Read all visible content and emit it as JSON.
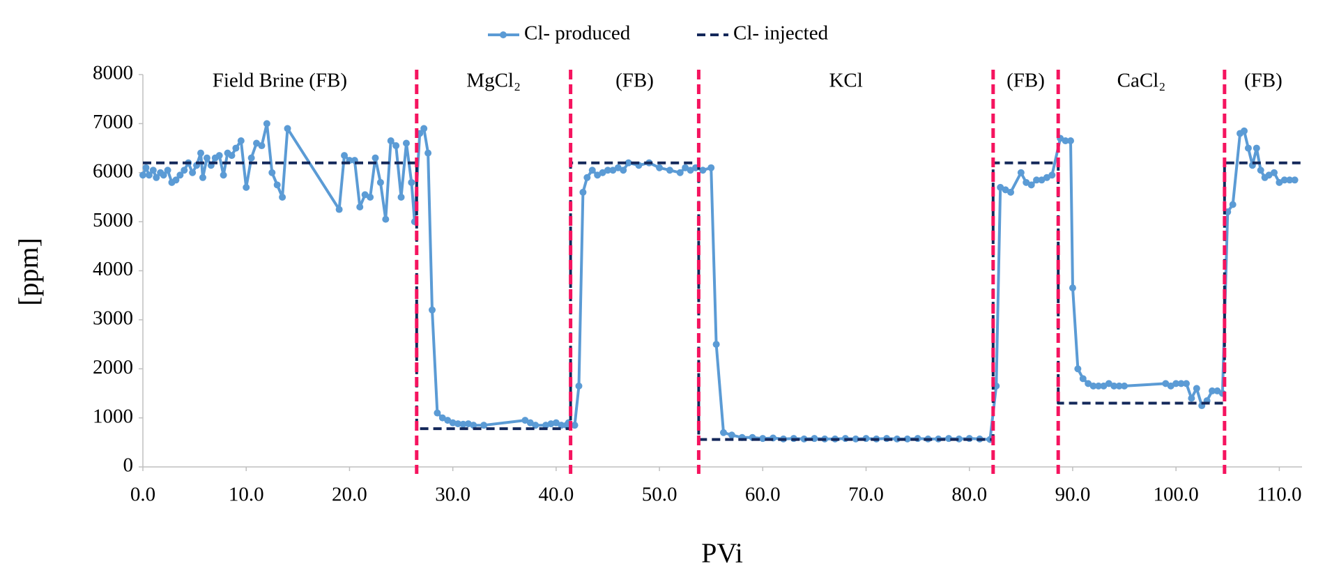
{
  "chart_data": {
    "type": "line",
    "xlabel": "PVi",
    "ylabel": "[ppm]",
    "xlim": [
      0,
      112.2
    ],
    "ylim": [
      0,
      8000
    ],
    "xticks": [
      {
        "value": 0,
        "label": "0.0"
      },
      {
        "value": 10,
        "label": "10.0"
      },
      {
        "value": 20,
        "label": "20.0"
      },
      {
        "value": 30,
        "label": "30.0"
      },
      {
        "value": 40,
        "label": "40.0"
      },
      {
        "value": 50,
        "label": "50.0"
      },
      {
        "value": 60,
        "label": "60.0"
      },
      {
        "value": 70,
        "label": "70.0"
      },
      {
        "value": 80,
        "label": "80.0"
      },
      {
        "value": 90,
        "label": "90.0"
      },
      {
        "value": 100,
        "label": "100.0"
      },
      {
        "value": 110,
        "label": "110.0"
      }
    ],
    "yticks": [
      0,
      1000,
      2000,
      3000,
      4000,
      5000,
      6000,
      7000,
      8000
    ],
    "grid": false,
    "legend": "top",
    "boundaries": [
      26.5,
      41.4,
      53.8,
      82.3,
      88.6,
      104.7
    ],
    "boundary_color": "#f5145f",
    "regions": [
      "Field Brine (FB)",
      "MgCl₂",
      "(FB)",
      "KCl",
      "(FB)",
      "CaCl₂",
      "(FB)"
    ],
    "series": [
      {
        "name": "Cl- produced",
        "color": "#5b9bd5",
        "style": "solid",
        "markers": true,
        "x": [
          0,
          0.3,
          0.6,
          1,
          1.3,
          1.7,
          2,
          2.4,
          2.8,
          3.2,
          3.6,
          4,
          4.4,
          4.8,
          5.2,
          5.6,
          5.8,
          6.2,
          6.6,
          7,
          7.4,
          7.8,
          8.2,
          8.6,
          9,
          9.5,
          10,
          10.5,
          11,
          11.5,
          12,
          12.5,
          13,
          13.5,
          14,
          19,
          19.5,
          20,
          20.5,
          21,
          21.5,
          22,
          22.5,
          23,
          23.5,
          24,
          24.5,
          25,
          25.5,
          26,
          26.3,
          26.8,
          27.2,
          27.6,
          28,
          28.5,
          29,
          29.5,
          30,
          30.5,
          31,
          31.5,
          32,
          33,
          37,
          37.5,
          38,
          39,
          39.5,
          40,
          40.5,
          41,
          41.2,
          41.8,
          42.2,
          42.6,
          43,
          43.5,
          44,
          44.5,
          45,
          45.5,
          46,
          46.5,
          47,
          48,
          49,
          50,
          51,
          52,
          52.5,
          53,
          53.5,
          54.2,
          55,
          55.5,
          56.2,
          57,
          58,
          59,
          60,
          61,
          62,
          63,
          64,
          65,
          66,
          67,
          68,
          69,
          70,
          71,
          72,
          73,
          74,
          75,
          76,
          77,
          78,
          79,
          80,
          81,
          82,
          82.6,
          83,
          83.5,
          84,
          85,
          85.5,
          86,
          86.5,
          87,
          87.5,
          88,
          88.8,
          89.3,
          89.8,
          90,
          90.5,
          91,
          91.5,
          92,
          92.5,
          93,
          93.5,
          94,
          94.5,
          95,
          99,
          99.5,
          100,
          100.5,
          101,
          101.5,
          102,
          102.5,
          103,
          103.5,
          104,
          104.5,
          105,
          105.5,
          106.2,
          106.6,
          107,
          107.4,
          107.8,
          108.2,
          108.6,
          109,
          109.5,
          110,
          110.5,
          111,
          111.5
        ],
        "values": [
          5950,
          6100,
          5950,
          6050,
          5900,
          6000,
          5950,
          6050,
          5800,
          5850,
          5950,
          6050,
          6200,
          6000,
          6150,
          6400,
          5900,
          6300,
          6150,
          6300,
          6350,
          5950,
          6400,
          6350,
          6500,
          6650,
          5700,
          6300,
          6600,
          6550,
          7000,
          6000,
          5750,
          5500,
          6900,
          5250,
          6350,
          6250,
          6250,
          5300,
          5550,
          5500,
          6300,
          5800,
          5050,
          6650,
          6550,
          5500,
          6600,
          5800,
          5000,
          6800,
          6900,
          6400,
          3200,
          1100,
          1000,
          950,
          900,
          880,
          870,
          880,
          850,
          850,
          950,
          900,
          850,
          850,
          880,
          900,
          850,
          850,
          900,
          850,
          1650,
          5600,
          5900,
          6050,
          5950,
          6000,
          6050,
          6050,
          6100,
          6050,
          6200,
          6150,
          6200,
          6100,
          6050,
          6000,
          6100,
          6050,
          6100,
          6050,
          6100,
          2500,
          700,
          650,
          600,
          600,
          580,
          590,
          570,
          580,
          570,
          580,
          570,
          570,
          580,
          570,
          580,
          570,
          580,
          570,
          570,
          580,
          570,
          570,
          580,
          570,
          580,
          570,
          560,
          1650,
          5700,
          5650,
          5600,
          6000,
          5800,
          5750,
          5850,
          5850,
          5900,
          5950,
          6700,
          6650,
          6650,
          3650,
          2000,
          1800,
          1700,
          1650,
          1650,
          1650,
          1700,
          1650,
          1650,
          1650,
          1700,
          1650,
          1700,
          1700,
          1700,
          1400,
          1600,
          1250,
          1350,
          1550,
          1550,
          1500,
          5200,
          5350,
          6800,
          6850,
          6500,
          6150,
          6500,
          6050,
          5900,
          5950,
          6000,
          5800,
          5850,
          5850,
          5850
        ]
      },
      {
        "name": "Cl- injected",
        "color": "#14285a",
        "style": "dashed",
        "markers": false,
        "x": [
          0,
          26.5,
          26.5,
          41.4,
          41.4,
          53.8,
          53.8,
          82.3,
          82.3,
          88.6,
          88.6,
          104.7,
          104.7,
          112.2
        ],
        "values": [
          6200,
          6200,
          780,
          780,
          6200,
          6200,
          560,
          560,
          6200,
          6200,
          1300,
          1300,
          6200,
          6200
        ]
      }
    ]
  }
}
